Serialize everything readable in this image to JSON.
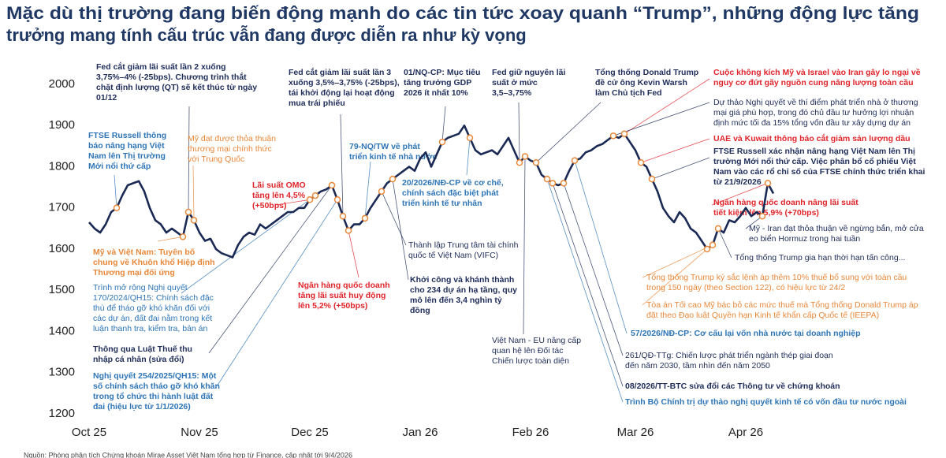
{
  "chart_data": {
    "type": "line",
    "title": [
      "Mặc dù thị trường đang biến động mạnh do các tin tức xoay quanh “Trump”, những động lực tăng",
      "trưởng mang tính cấu trúc vẫn đang được diễn ra như kỳ vọng"
    ],
    "categories": [
      "Oct 25",
      null,
      null,
      null,
      null,
      null,
      null,
      null,
      null,
      null,
      null,
      null,
      null,
      null,
      null,
      null,
      null,
      null,
      null,
      null,
      "Nov 25",
      null,
      null,
      null,
      null,
      null,
      null,
      null,
      null,
      null,
      null,
      null,
      null,
      null,
      null,
      null,
      null,
      null,
      null,
      null,
      "Dec 25",
      null,
      null,
      null,
      null,
      null,
      null,
      null,
      null,
      null,
      null,
      null,
      null,
      null,
      null,
      null,
      null,
      null,
      null,
      null,
      "Jan 26",
      null,
      null,
      null,
      null,
      null,
      null,
      null,
      null,
      null,
      null,
      null,
      null,
      null,
      null,
      null,
      null,
      null,
      null,
      null,
      "Feb 26",
      null,
      null,
      null,
      null,
      null,
      null,
      null,
      null,
      null,
      null,
      null,
      null,
      null,
      null,
      null,
      null,
      null,
      null,
      "Mar 26",
      null,
      null,
      null,
      null,
      null,
      null,
      null,
      null,
      null,
      null,
      null,
      null,
      null,
      null,
      null,
      null,
      null,
      null,
      null,
      "Apr 26",
      null,
      null,
      null,
      null,
      null
    ],
    "values": [
      1665,
      1650,
      1640,
      1660,
      1690,
      1700,
      1730,
      1755,
      1760,
      1765,
      1740,
      1700,
      1670,
      1660,
      1640,
      1650,
      1640,
      1630,
      1690,
      1670,
      1640,
      1620,
      1625,
      1600,
      1590,
      1585,
      1580,
      1610,
      1630,
      1640,
      1635,
      1660,
      1650,
      1660,
      1670,
      1680,
      1690,
      1690,
      1700,
      1700,
      1720,
      1730,
      1740,
      1745,
      1755,
      1720,
      1680,
      1645,
      1660,
      1660,
      1675,
      1700,
      1720,
      1740,
      1760,
      1770,
      1780,
      1790,
      1800,
      1790,
      1820,
      1835,
      1800,
      1830,
      1860,
      1870,
      1875,
      1880,
      1900,
      1870,
      1840,
      1830,
      1835,
      1840,
      1830,
      1850,
      1870,
      1840,
      1810,
      1825,
      1815,
      1810,
      1780,
      1770,
      1760,
      1755,
      1760,
      1790,
      1815,
      1820,
      1835,
      1840,
      1850,
      1855,
      1865,
      1875,
      1870,
      1880,
      1860,
      1840,
      1810,
      1800,
      1770,
      1740,
      1700,
      1680,
      1665,
      1690,
      1675,
      1650,
      1640,
      1620,
      1600,
      1610,
      1650,
      1640,
      1670,
      1665,
      1680,
      1700,
      1680,
      1690,
      1680,
      1760,
      1735
    ],
    "color": "#1b2a55",
    "marker_color": "#e8883a",
    "ylim": [
      1200,
      2000
    ],
    "yticks": [
      1200,
      1300,
      1400,
      1500,
      1600,
      1700,
      1800,
      1900,
      2000
    ],
    "grid": false,
    "annotations": [
      {
        "color": "#1f2d5a",
        "lines": [
          "Fed cắt giảm lãi suất lần 2 xuống",
          "3,75%–4% (-25bps). Chương trình thắt",
          "chặt định lượng (QT) sẽ kết thúc từ ngày",
          "01/12"
        ]
      },
      {
        "color": "#2e75b6",
        "lines": [
          "FTSE Russell thông",
          "báo nâng hạng Việt",
          "Nam lên Thị trường",
          "Mới nổi thứ cấp"
        ]
      },
      {
        "color": "#e8883a",
        "lines": [
          "Mỹ đạt được thỏa thuận",
          "thương mại chính thức",
          "với Trung Quốc"
        ]
      },
      {
        "color": "#e8883a",
        "lines": [
          "Mỹ và Việt Nam: Tuyên bố",
          "chung về Khuôn khổ Hiệp định",
          "Thương mại đối ứng"
        ]
      },
      {
        "color": "#2e75b6",
        "lines": [
          "Trình mở rộng Nghị quyết",
          "170/2024/QH15: Chính sách đặc",
          "thù để tháo gỡ khó khăn đối với",
          "các dự án, đất đai nằm trong kết",
          "luận thanh tra, kiểm tra, bản án"
        ]
      },
      {
        "color": "#1f2d5a",
        "lines": [
          "Thông qua Luật Thuế thu",
          "nhập cá nhân (sửa đổi)"
        ]
      },
      {
        "color": "#2e75b6",
        "lines": [
          "Nghị quyết 254/2025/QH15: Một",
          "số chính sách tháo gỡ khó khăn",
          "trong tổ chức thi hành luật đất",
          "đai (hiệu lực từ 1/1/2026)"
        ]
      },
      {
        "color": "#1f2d5a",
        "lines": [
          "Fed cắt giảm lãi suất lần 3",
          "xuống 3,5%–3,75% (-25bps),",
          "tái khởi động lại hoạt động",
          "mua trái phiếu"
        ]
      },
      {
        "color": "#e0252b",
        "lines": [
          "Lãi suất OMO",
          "tăng lên 4,5%",
          "(+50bps)"
        ]
      },
      {
        "color": "#e0252b",
        "lines": [
          "Ngân hàng quốc doanh",
          "tăng lãi suất huy động",
          "lên 5,2% (+50bps)"
        ]
      },
      {
        "color": "#2e75b6",
        "lines": [
          "79-NQ/TW về phát",
          "triển kinh tế nhà nước"
        ]
      },
      {
        "color": "#1f2d5a",
        "lines": [
          "01/NQ-CP: Mục tiêu",
          "tăng trưởng GDP",
          "2026 ít nhất 10%"
        ]
      },
      {
        "color": "#2e75b6",
        "lines": [
          "20/2026/NĐ-CP về cơ chế,",
          "chính sách đặc biệt phát",
          "triển kinh tế tư nhân"
        ]
      },
      {
        "color": "#1f2d5a",
        "lines": [
          "Thành lập Trung tâm tài chính",
          "quốc tế Việt Nam (VIFC)"
        ]
      },
      {
        "color": "#1f2d5a",
        "lines": [
          "Khởi công và khánh thành",
          "cho 234 dự án hạ tầng, quy",
          "mô lên đến 3,4 nghìn tỷ",
          "đồng"
        ]
      },
      {
        "color": "#1f2d5a",
        "lines": [
          "Fed giữ nguyên lãi",
          "suất ở mức",
          "3,5–3,75%"
        ]
      },
      {
        "color": "#1f2d5a",
        "lines": [
          "Việt Nam - EU nâng cấp",
          "quan hệ lên Đối tác",
          "Chiến lược toàn diện"
        ]
      },
      {
        "color": "#1f2d5a",
        "lines": [
          "Tổng thống Donald Trump",
          "đề cử ông Kevin Warsh",
          "làm Chủ tịch Fed"
        ]
      },
      {
        "color": "#e0252b",
        "lines": [
          "Cuộc không kích Mỹ và Israel vào Iran gây lo ngại về",
          "nguy cơ đứt gãy nguồn cung năng lượng toàn cầu"
        ]
      },
      {
        "color": "#1f2d5a",
        "lines": [
          "Dự thảo Nghị quyết về thí điểm phát triển nhà ở thương",
          "mại giá phù hợp, trong đó chủ đầu tư hưởng lợi nhuận",
          "định mức tối đa 15% tổng vốn đầu tư xây dựng dự án"
        ]
      },
      {
        "color": "#e0252b",
        "lines": [
          "UAE và Kuwait thông báo cắt giảm sản lượng dầu"
        ]
      },
      {
        "color": "#1f2d5a",
        "lines": [
          "FTSE Russell xác nhận nâng hạng Việt Nam lên Thị",
          "trường Mới nổi thứ cấp. Việc phân bổ cổ phiếu Việt",
          "Nam vào các rổ chỉ số của FTSE chính thức triển khai",
          "từ 21/9/2026"
        ]
      },
      {
        "color": "#e0252b",
        "lines": [
          "Ngân hàng quốc doanh nâng lãi suất",
          "tiết kiệm lên 5,9% (+70bps)"
        ]
      },
      {
        "color": "#1f2d5a",
        "lines": [
          "Mỹ - Iran đạt thỏa thuận về ngừng bắn, mở cửa",
          "eo biển Hormuz trong hai tuần"
        ]
      },
      {
        "color": "#1f2d5a",
        "lines": [
          "Tổng thống Trump gia hạn thời hạn tấn công..."
        ]
      },
      {
        "color": "#e8883a",
        "lines": [
          "Tổng thống Trump ký sắc lệnh áp thêm 10% thuế bổ sung với toàn cầu",
          "trong 150 ngày (theo Section 122), có hiệu lực từ 24/2"
        ]
      },
      {
        "color": "#e8883a",
        "lines": [
          "Tòa án Tối cao Mỹ bác bỏ các mức thuế mà Tổng thống Donald Trump áp",
          "đặt theo Đạo luật Quyền hạn Kinh tế khẩn cấp Quốc tế (IEEPA)"
        ]
      },
      {
        "color": "#2e75b6",
        "lines": [
          "57/2026/NĐ-CP: Cơ cấu lại vốn nhà nước tại doanh nghiệp"
        ]
      },
      {
        "color": "#1f2d5a",
        "lines": [
          "261/QĐ-TTg: Chiến lược phát triển ngành thép giai đoạn",
          "đến năm 2030, tầm nhìn đến năm 2050"
        ]
      },
      {
        "color": "#1f2d5a",
        "lines": [
          "08/2026/TT-BTC sửa đổi các Thông tư về chứng khoán"
        ]
      },
      {
        "color": "#2e75b6",
        "lines": [
          "Trình Bộ Chính trị dự thảo nghị quyết kinh tế có vốn đầu tư nước ngoài"
        ]
      }
    ],
    "source": "Nguồn: Phòng phân tích Chứng khoán Mirae Asset Việt Nam tổng hợp từ Finance, cập nhật tới 9/4/2026"
  }
}
